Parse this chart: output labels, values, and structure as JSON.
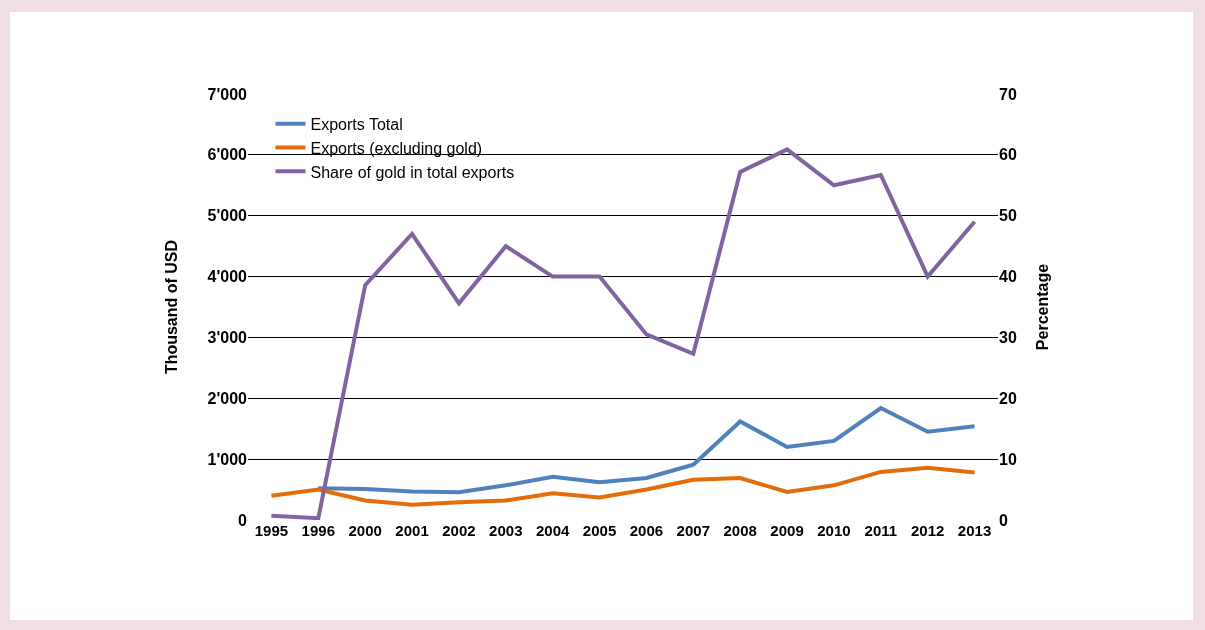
{
  "chart_data": {
    "type": "line",
    "ylabel": "Thousand of USD",
    "y2label": "Percentage",
    "categories": [
      "1995",
      "1996",
      "2000",
      "2001",
      "2002",
      "2003",
      "2004",
      "2005",
      "2006",
      "2007",
      "2008",
      "2009",
      "2010",
      "2011",
      "2012",
      "2013"
    ],
    "series": [
      {
        "name": "Exports Total",
        "color": "#4f81bd",
        "values": [
          null,
          520,
          510,
          470,
          455,
          570,
          710,
          620,
          690,
          910,
          1620,
          1200,
          1300,
          1840,
          1450,
          1540
        ]
      },
      {
        "name": "Exports (excluding gold)",
        "color": "#e46c0a",
        "values": [
          400,
          500,
          320,
          250,
          290,
          320,
          440,
          370,
          500,
          660,
          690,
          460,
          570,
          790,
          860,
          780
        ]
      },
      {
        "name": "Share of gold in total exports",
        "color": "#8064a2",
        "axis": "y2",
        "values": [
          0.7,
          0.3,
          38.6,
          47,
          35.6,
          45,
          40,
          40,
          30.5,
          27.3,
          57.2,
          60.9,
          55,
          56.7,
          40,
          49
        ]
      }
    ],
    "ylim": [
      0,
      7000
    ],
    "yticks": [
      {
        "value": 0,
        "label": "0"
      },
      {
        "value": 1000,
        "label": "1'000"
      },
      {
        "value": 2000,
        "label": "2'000"
      },
      {
        "value": 3000,
        "label": "3'000"
      },
      {
        "value": 4000,
        "label": "4'000"
      },
      {
        "value": 5000,
        "label": "5'000"
      },
      {
        "value": 6000,
        "label": "6'000"
      },
      {
        "value": 7000,
        "label": "7'000"
      }
    ],
    "y2lim": [
      0,
      70
    ],
    "y2ticks": [
      0,
      10,
      20,
      30,
      40,
      50,
      60,
      70
    ],
    "grid": "y",
    "legend": "top left",
    "marker": "none",
    "line_style": "solid"
  }
}
